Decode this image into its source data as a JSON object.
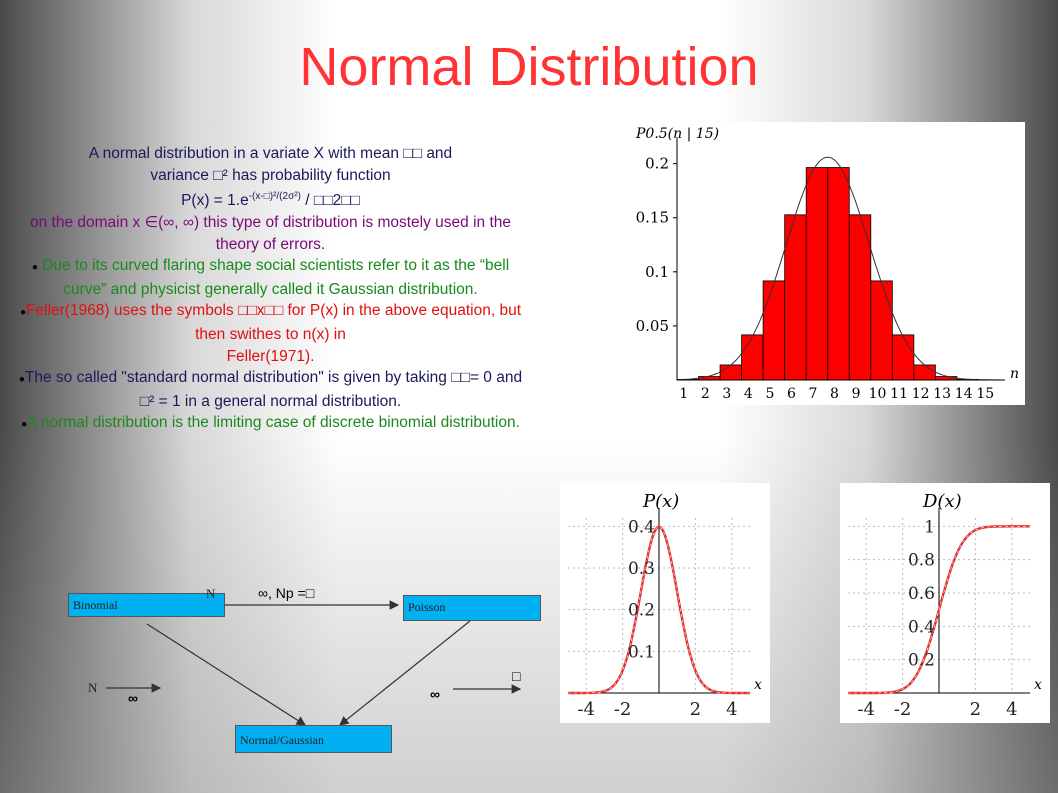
{
  "slide": {
    "title": "Normal Distribution",
    "paragraphs": {
      "p1_line1": "A normal distribution in a variate X with mean",
      "p1_and": "and",
      "p1_line2_a": "variance",
      "p1_line2_b": "² has probability function",
      "formula_a": "P(x) = 1.e",
      "formula_sup": "-(x-\u0000)²/(2σ²)",
      "formula_b": " / ",
      "formula_c": "2",
      "p2": "on the domain x ∈(∞, ∞) this type of distribution is mostely used in the theory of errors.",
      "p3": "Due to its curved flaring shape social scientists refer to it as the  “bell curve” and physicist generally called it Gaussian distribution.",
      "p4_a": "Feller(1968) uses the symbols",
      "p4_b": "x",
      "p4_c": "for P(x) in the above equation, but then swithes to n(x) in",
      "p4_d": "Feller(1971).",
      "p5_a": "The so called \"standard normal distribution\" is given by taking",
      "p5_b": "= 0 and",
      "p5_c": "² = 1 in a general normal distribution.",
      "p6": "A normal distribution is the limiting case of discrete binomial distribution.",
      "bullet": "●"
    }
  },
  "flow": {
    "binomial": "Binomial",
    "poisson": "Poisson",
    "normal": "Normal/Gaussian",
    "top_label_n": "N",
    "top_label_rest": "∞, Np =",
    "left_n": "N",
    "left_inf": "∞",
    "right_inf": "∞",
    "right_sym": ""
  },
  "chart_data": [
    {
      "type": "bar",
      "title": "P0.5(n | 15)",
      "xlabel": "n",
      "categories": [
        "1",
        "2",
        "3",
        "4",
        "5",
        "6",
        "7",
        "8",
        "9",
        "10",
        "11",
        "12",
        "13",
        "14",
        "15"
      ],
      "values": [
        0.0005,
        0.0032,
        0.0139,
        0.0417,
        0.0916,
        0.1527,
        0.1964,
        0.1964,
        0.1527,
        0.0916,
        0.0417,
        0.0139,
        0.0032,
        0.0005,
        0.0
      ],
      "y_ticks": [
        "0.05",
        "0.1",
        "0.15",
        "0.2"
      ],
      "ylim": [
        0,
        0.22
      ],
      "bar_color": "#ff0000",
      "overlay": "normal curve"
    },
    {
      "type": "line",
      "title": "P(x)",
      "xlabel": "x",
      "x_ticks": [
        "-4",
        "-2",
        "2",
        "4"
      ],
      "y_ticks": [
        "0.1",
        "0.2",
        "0.3",
        "0.4"
      ],
      "xlim": [
        -5,
        5
      ],
      "ylim": [
        0,
        0.42
      ],
      "series": [
        {
          "function": "normal pdf",
          "color": "#e03030"
        }
      ]
    },
    {
      "type": "line",
      "title": "D(x)",
      "xlabel": "x",
      "x_ticks": [
        "-4",
        "-2",
        "2",
        "4"
      ],
      "y_ticks": [
        "0.2",
        "0.4",
        "0.6",
        "0.8",
        "1"
      ],
      "xlim": [
        -5,
        5
      ],
      "ylim": [
        0,
        1.05
      ],
      "series": [
        {
          "function": "normal cdf",
          "color": "#e03030"
        }
      ]
    }
  ]
}
